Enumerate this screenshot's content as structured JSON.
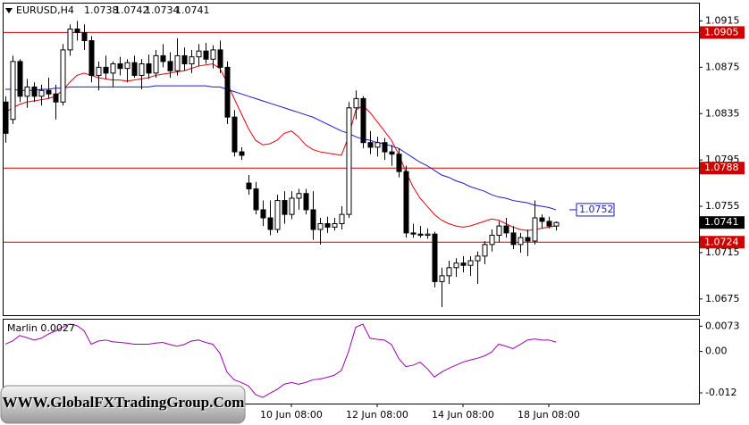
{
  "watermark": "WWW.GlobalFXTradingGroup.Com",
  "chart_data": [
    {
      "type": "candlestick",
      "title": "EURUSD,H4",
      "open": [
        1.0845,
        1.083,
        1.088,
        1.085,
        1.0858,
        1.085,
        1.0855,
        1.0852,
        1.0845,
        1.089,
        1.0908,
        1.0905,
        1.0898,
        1.0868,
        1.0875,
        1.087,
        1.0878,
        1.0874,
        1.0879,
        1.0868,
        1.0878,
        1.087,
        1.0885,
        1.088,
        1.0872,
        1.0885,
        1.0878,
        1.0884,
        1.0889,
        1.0882,
        1.089,
        1.0875,
        1.0832,
        1.0802,
        1.0775,
        1.077,
        1.0752,
        1.0745,
        1.0735,
        1.076,
        1.0748,
        1.0762,
        1.0766,
        1.0752,
        1.0735,
        1.074,
        1.0737,
        1.074,
        1.0748,
        1.084,
        1.0848,
        1.081,
        1.0806,
        1.081,
        1.0802,
        1.08,
        1.0785,
        1.0732,
        1.0731,
        1.073,
        1.0731,
        1.069,
        1.0695,
        1.0702,
        1.0706,
        1.0704,
        1.0708,
        1.0712,
        1.0722,
        1.073,
        1.0738,
        1.0732,
        1.0722,
        1.0728,
        1.0725,
        1.0745,
        1.0742,
        1.0738
      ],
      "high": [
        1.085,
        1.0885,
        1.0882,
        1.0865,
        1.0862,
        1.086,
        1.0866,
        1.086,
        1.0895,
        1.0912,
        1.0915,
        1.0912,
        1.0902,
        1.088,
        1.0885,
        1.088,
        1.0884,
        1.0882,
        1.0885,
        1.0882,
        1.0886,
        1.089,
        1.0895,
        1.0888,
        1.09,
        1.0892,
        1.089,
        1.0895,
        1.0896,
        1.0894,
        1.0898,
        1.088,
        1.0838,
        1.0806,
        1.0782,
        1.0776,
        1.076,
        1.076,
        1.0765,
        1.0768,
        1.0768,
        1.077,
        1.077,
        1.0768,
        1.0745,
        1.0746,
        1.0745,
        1.0755,
        1.0845,
        1.0855,
        1.085,
        1.082,
        1.0815,
        1.0814,
        1.0808,
        1.0805,
        1.079,
        1.074,
        1.0738,
        1.0736,
        1.0733,
        1.0702,
        1.0708,
        1.071,
        1.0712,
        1.0712,
        1.0716,
        1.0725,
        1.0735,
        1.0742,
        1.0745,
        1.0738,
        1.0732,
        1.0735,
        1.076,
        1.0748,
        1.0746,
        1.0742
      ],
      "low": [
        1.081,
        1.0826,
        1.0845,
        1.084,
        1.0845,
        1.0842,
        1.0848,
        1.083,
        1.0842,
        1.0885,
        1.0898,
        1.089,
        1.0862,
        1.0855,
        1.0865,
        1.0858,
        1.0868,
        1.0862,
        1.0866,
        1.0856,
        1.0865,
        1.0866,
        1.0875,
        1.0866,
        1.0868,
        1.0872,
        1.087,
        1.0876,
        1.0878,
        1.0874,
        1.087,
        1.0826,
        1.0798,
        1.0795,
        1.0765,
        1.0748,
        1.0738,
        1.073,
        1.0732,
        1.074,
        1.0744,
        1.0752,
        1.0748,
        1.0726,
        1.0722,
        1.0732,
        1.0734,
        1.0735,
        1.0745,
        1.083,
        1.0805,
        1.08,
        1.0798,
        1.0795,
        1.079,
        1.078,
        1.0728,
        1.0728,
        1.0728,
        1.0727,
        1.0685,
        1.0668,
        1.0688,
        1.0694,
        1.0698,
        1.0695,
        1.0688,
        1.0705,
        1.0716,
        1.0724,
        1.0728,
        1.0718,
        1.0715,
        1.0712,
        1.0722,
        1.0736,
        1.0736,
        1.0734
      ],
      "close": [
        1.0818,
        1.088,
        1.085,
        1.0858,
        1.085,
        1.0855,
        1.0852,
        1.0845,
        1.089,
        1.0908,
        1.0905,
        1.0898,
        1.0868,
        1.0875,
        1.087,
        1.0878,
        1.0874,
        1.0879,
        1.0868,
        1.0878,
        1.087,
        1.0885,
        1.088,
        1.0872,
        1.0885,
        1.0878,
        1.0884,
        1.0889,
        1.0882,
        1.089,
        1.0875,
        1.0832,
        1.0802,
        1.0799,
        1.077,
        1.0752,
        1.0745,
        1.0735,
        1.076,
        1.0748,
        1.0762,
        1.0766,
        1.0752,
        1.0735,
        1.074,
        1.0737,
        1.074,
        1.0748,
        1.084,
        1.0848,
        1.081,
        1.0806,
        1.081,
        1.0802,
        1.08,
        1.0785,
        1.0732,
        1.0731,
        1.073,
        1.0731,
        1.069,
        1.0695,
        1.0702,
        1.0706,
        1.0704,
        1.0708,
        1.0712,
        1.0722,
        1.073,
        1.0738,
        1.0732,
        1.0722,
        1.0728,
        1.0725,
        1.0745,
        1.0742,
        1.0738,
        1.0741
      ],
      "up_color": "#ffffff",
      "down_color": "#000000",
      "overlays": [
        {
          "color": "#e8000b",
          "values": [
            1.0836,
            1.084,
            1.0843,
            1.0845,
            1.0846,
            1.0847,
            1.0848,
            1.085,
            1.0855,
            1.0862,
            1.0868,
            1.087,
            1.0868,
            1.0866,
            1.0865,
            1.0864,
            1.0864,
            1.0863,
            1.0864,
            1.0865,
            1.0866,
            1.0868,
            1.0869,
            1.087,
            1.0871,
            1.0872,
            1.0874,
            1.0876,
            1.0877,
            1.0878,
            1.0874,
            1.0862,
            1.0848,
            1.0835,
            1.0822,
            1.0812,
            1.0808,
            1.0809,
            1.0812,
            1.0818,
            1.082,
            1.0815,
            1.0808,
            1.0804,
            1.0802,
            1.0801,
            1.08,
            1.0799,
            1.0815,
            1.0838,
            1.0842,
            1.0836,
            1.0828,
            1.082,
            1.0812,
            1.08,
            1.0785,
            1.0772,
            1.0762,
            1.0755,
            1.0748,
            1.0743,
            1.074,
            1.0738,
            1.0737,
            1.0738,
            1.074,
            1.0742,
            1.0744,
            1.0743,
            1.074,
            1.0737,
            1.0735,
            1.0734,
            1.0735,
            1.0736,
            1.0737,
            1.0738
          ]
        },
        {
          "color": "#1a1acc",
          "values": [
            1.0856,
            1.0856,
            1.0855,
            1.0855,
            1.0855,
            1.0856,
            1.0856,
            1.0857,
            1.0857,
            1.0858,
            1.0858,
            1.0858,
            1.0858,
            1.0858,
            1.0858,
            1.0858,
            1.0858,
            1.0858,
            1.0858,
            1.0858,
            1.0858,
            1.0859,
            1.0859,
            1.0859,
            1.0859,
            1.0859,
            1.0859,
            1.0859,
            1.0859,
            1.0858,
            1.0858,
            1.0856,
            1.0854,
            1.0852,
            1.085,
            1.0848,
            1.0846,
            1.0844,
            1.0842,
            1.084,
            1.0838,
            1.0836,
            1.0834,
            1.0832,
            1.0829,
            1.0826,
            1.0823,
            1.082,
            1.0818,
            1.0815,
            1.0813,
            1.0812,
            1.081,
            1.0809,
            1.0807,
            1.0805,
            1.0801,
            1.0797,
            1.0793,
            1.079,
            1.0786,
            1.0782,
            1.078,
            1.0777,
            1.0775,
            1.0772,
            1.077,
            1.0768,
            1.0765,
            1.0763,
            1.0762,
            1.076,
            1.0759,
            1.0758,
            1.0756,
            1.0755,
            1.0754,
            1.0752
          ]
        }
      ],
      "hlines": [
        1.0905,
        1.0788,
        1.0724
      ],
      "hline_color": "#d00000",
      "ylim": [
        1.0661,
        1.093
      ],
      "yticks": [
        1.0915,
        1.0875,
        1.0835,
        1.0795,
        1.0755,
        1.0715,
        1.0675
      ]
    },
    {
      "type": "line",
      "title": "Marlin 0.0027",
      "color": "#a000b0",
      "values": [
        0.0021,
        0.003,
        0.0046,
        0.004,
        0.0033,
        0.0038,
        0.005,
        0.0059,
        0.007,
        0.0079,
        0.0075,
        0.006,
        0.0021,
        0.003,
        0.0033,
        0.0028,
        0.0026,
        0.0024,
        0.0021,
        0.0021,
        0.0021,
        0.0024,
        0.0026,
        0.002,
        0.0015,
        0.002,
        0.003,
        0.0033,
        0.0026,
        0.0021,
        -0.0005,
        -0.006,
        -0.0082,
        -0.009,
        -0.01,
        -0.0125,
        -0.0133,
        -0.0121,
        -0.011,
        -0.0095,
        -0.009,
        -0.0095,
        -0.009,
        -0.0082,
        -0.008,
        -0.0075,
        -0.0069,
        -0.0055,
        0.0,
        0.007,
        0.0079,
        0.0038,
        0.0035,
        0.0033,
        0.002,
        -0.002,
        -0.0044,
        -0.004,
        -0.0031,
        -0.005,
        -0.0074,
        -0.006,
        -0.0049,
        -0.004,
        -0.0031,
        -0.0025,
        -0.002,
        -0.0013,
        -0.0002,
        0.0021,
        0.0015,
        0.0008,
        0.002,
        0.0033,
        0.0036,
        0.0033,
        0.0033,
        0.0027
      ],
      "ylim": [
        -0.0151,
        0.0092
      ],
      "yticks": [
        0.0073,
        {
          "value": 0,
          "label": "0.00"
        },
        -0.012
      ],
      "xticks": [
        {
          "value": 40,
          "label": "10 Jun 08:00"
        },
        {
          "value": 52,
          "label": "12 Jun 08:00"
        },
        {
          "value": 64,
          "label": "14 Jun 08:00"
        },
        {
          "value": 76,
          "label": "18 Jun 08:00"
        }
      ]
    }
  ]
}
